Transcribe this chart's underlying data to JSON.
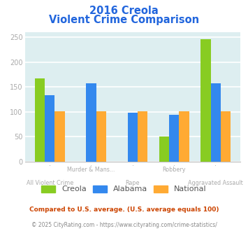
{
  "title_line1": "2016 Creola",
  "title_line2": "Violent Crime Comparison",
  "series": {
    "Creola": [
      168,
      null,
      null,
      50,
      246
    ],
    "Alabama": [
      134,
      158,
      98,
      94,
      157
    ],
    "National": [
      101,
      101,
      101,
      101,
      101
    ]
  },
  "colors": {
    "Creola": "#88cc22",
    "Alabama": "#3388ee",
    "National": "#ffaa33"
  },
  "ylim": [
    0,
    260
  ],
  "yticks": [
    0,
    50,
    100,
    150,
    200,
    250
  ],
  "background_color": "#ddeef0",
  "grid_color": "#ffffff",
  "title_color": "#2266dd",
  "axis_label_color": "#aaaaaa",
  "legend_text_color": "#555555",
  "legend_labels": [
    "Creola",
    "Alabama",
    "National"
  ],
  "top_xlabels": [
    [
      "Murder & Mans...",
      1
    ],
    [
      "Robbery",
      3
    ]
  ],
  "bottom_xlabels": [
    [
      "All Violent Crime",
      0
    ],
    [
      "Rape",
      2
    ],
    [
      "Aggravated Assault",
      4
    ]
  ],
  "footnote1": "Compared to U.S. average. (U.S. average equals 100)",
  "footnote2": "© 2025 CityRating.com - https://www.cityrating.com/crime-statistics/",
  "footnote1_color": "#cc4400",
  "footnote2_color": "#888888"
}
